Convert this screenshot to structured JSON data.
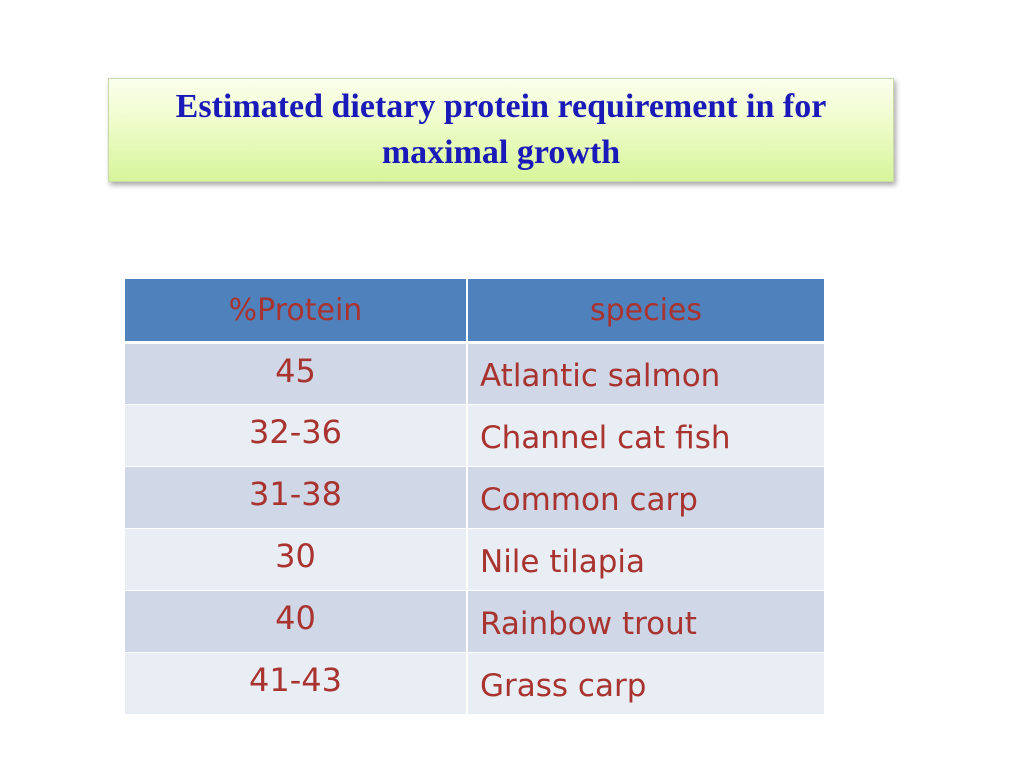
{
  "title": "Estimated dietary protein requirement in for maximal growth",
  "table": {
    "headers": [
      "%Protein",
      "species"
    ],
    "rows": [
      {
        "protein": "45",
        "species": "Atlantic salmon"
      },
      {
        "protein": "32-36",
        "species": "Channel cat fish"
      },
      {
        "protein": "31-38",
        "species": "Common carp"
      },
      {
        "protein": "30",
        "species": "Nile tilapia"
      },
      {
        "protein": "40",
        "species": "Rainbow trout"
      },
      {
        "protein": "41-43",
        "species": "Grass carp"
      }
    ]
  },
  "colors": {
    "title_text": "#1a1ab8",
    "header_bg": "#4f81bd",
    "cell_text": "#a8332f",
    "row_odd_bg": "#d0d8e8",
    "row_even_bg": "#e9edf4"
  }
}
